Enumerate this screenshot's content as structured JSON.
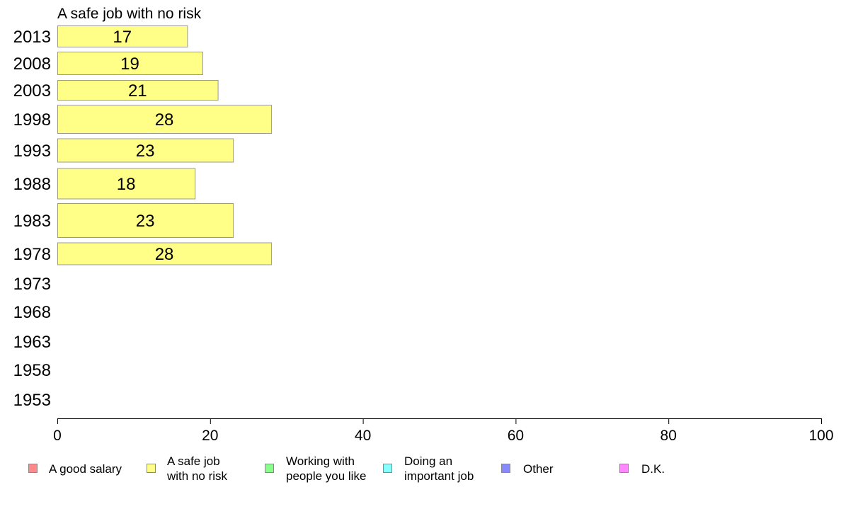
{
  "chart_data": {
    "type": "bar",
    "orientation": "horizontal",
    "title": "A safe job with no risk",
    "categories": [
      "2013",
      "2008",
      "2003",
      "1998",
      "1993",
      "1988",
      "1983",
      "1978",
      "1973",
      "1968",
      "1963",
      "1958",
      "1953"
    ],
    "values": [
      17,
      19,
      21,
      28,
      23,
      18,
      23,
      28,
      null,
      null,
      null,
      null,
      null
    ],
    "xlim": [
      0,
      100
    ],
    "xticks": [
      "0",
      "20",
      "40",
      "60",
      "80",
      "100"
    ],
    "xlabel": "",
    "ylabel": "",
    "grid": false,
    "legend_position": "bottom",
    "bar_color": "#ffff88",
    "bar_border_color": "#999999"
  },
  "legend": {
    "items": [
      {
        "label_lines": [
          "A good salary"
        ],
        "color": "#ff8888"
      },
      {
        "label_lines": [
          "A safe job",
          "with no risk"
        ],
        "color": "#ffff88"
      },
      {
        "label_lines": [
          "Working with",
          "people you like"
        ],
        "color": "#88ff88"
      },
      {
        "label_lines": [
          "Doing an",
          "important job"
        ],
        "color": "#88ffff"
      },
      {
        "label_lines": [
          "Other"
        ],
        "color": "#8888ff"
      },
      {
        "label_lines": [
          "D.K."
        ],
        "color": "#ff88ff"
      }
    ]
  }
}
